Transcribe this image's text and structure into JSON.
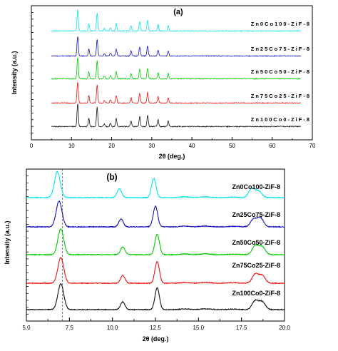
{
  "chart_data": [
    {
      "panel": "(a)",
      "type": "line",
      "xlabel": "2θ (deg.)",
      "ylabel": "Intensity (a.u.)",
      "xlim": [
        0,
        70
      ],
      "xticks": [
        "0",
        "10",
        "20",
        "30",
        "40",
        "50",
        "60",
        "70"
      ],
      "peaks_2theta": [
        7.3,
        10.4,
        12.7,
        14.7,
        16.4,
        18.0,
        22.1,
        24.5,
        26.7,
        29.6,
        32.4
      ],
      "series": [
        {
          "name": "Zn0Co100-ZiF-8",
          "color": "#00e5ee"
        },
        {
          "name": "Zn25Co75-ZiF-8",
          "color": "#1010c0"
        },
        {
          "name": "Zn50Co50-ZiF-8",
          "color": "#00cc00"
        },
        {
          "name": "Zn75Co25-ZiF-8",
          "color": "#ee1111"
        },
        {
          "name": "Zn100Co0-ZiF-8",
          "color": "#111111"
        }
      ]
    },
    {
      "panel": "(b)",
      "type": "line",
      "xlabel": "2θ (deg.)",
      "ylabel": "Intensity (a.u.)",
      "xlim": [
        5.0,
        20.0
      ],
      "xticks": [
        "5.0",
        "7.5",
        "10.0",
        "12.5",
        "15.0",
        "17.5",
        "20.0"
      ],
      "reference_line_2theta": 7.1,
      "series": [
        {
          "name": "Zn0Co100-ZiF-8",
          "color": "#00e5ee",
          "peaks": [
            [
              6.8,
              1.0
            ],
            [
              10.4,
              0.35
            ],
            [
              12.4,
              0.75
            ],
            [
              18.1,
              0.35
            ],
            [
              18.5,
              0.25
            ]
          ]
        },
        {
          "name": "Zn25Co75-ZiF-8",
          "color": "#1010c0",
          "peaks": [
            [
              6.9,
              1.0
            ],
            [
              10.5,
              0.3
            ],
            [
              12.5,
              0.8
            ],
            [
              18.2,
              0.3
            ],
            [
              18.6,
              0.35
            ]
          ]
        },
        {
          "name": "Zn50Co50-ZiF-8",
          "color": "#00cc00",
          "peaks": [
            [
              7.0,
              1.0
            ],
            [
              10.6,
              0.3
            ],
            [
              12.6,
              0.8
            ],
            [
              18.3,
              0.35
            ],
            [
              18.7,
              0.3
            ]
          ]
        },
        {
          "name": "Zn75Co25-ZiF-8",
          "color": "#ee1111",
          "peaks": [
            [
              7.0,
              1.0
            ],
            [
              10.6,
              0.3
            ],
            [
              12.6,
              0.85
            ],
            [
              18.3,
              0.35
            ],
            [
              18.7,
              0.3
            ]
          ]
        },
        {
          "name": "Zn100Co0-ZiF-8",
          "color": "#111111",
          "peaks": [
            [
              7.0,
              1.0
            ],
            [
              10.6,
              0.3
            ],
            [
              12.6,
              0.85
            ],
            [
              18.3,
              0.35
            ],
            [
              18.7,
              0.3
            ]
          ]
        }
      ]
    }
  ]
}
